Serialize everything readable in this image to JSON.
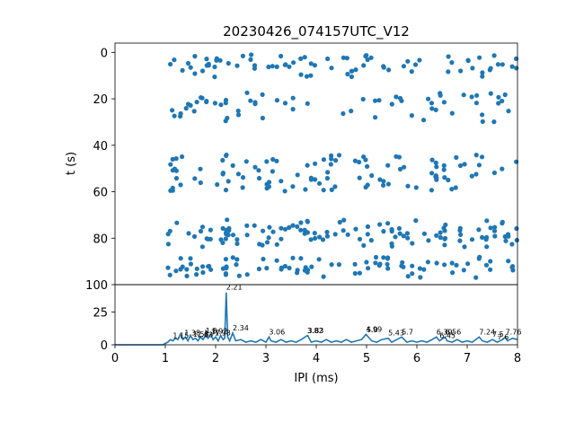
{
  "title": "20230426_074157UTC_V12",
  "colors": {
    "series": "#1f77b4",
    "axis": "#000000",
    "background": "#ffffff"
  },
  "chart_data": [
    {
      "type": "scatter",
      "panel": "raster",
      "title": "20230426_074157UTC_V12",
      "xlabel": "",
      "ylabel": "t (s)",
      "xlim": [
        0,
        8
      ],
      "ylim": [
        100,
        -4
      ],
      "y_inverted": true,
      "yticks": [
        "0",
        "20",
        "40",
        "60",
        "80",
        "100"
      ],
      "grid": false,
      "spike_ipi_ms": [
        1.06,
        1.1,
        1.14,
        1.18,
        1.22,
        1.3,
        1.34,
        1.42,
        1.46,
        1.5,
        1.58,
        1.62,
        1.7,
        1.74,
        1.82,
        1.86,
        1.9,
        1.98,
        2.02,
        2.1,
        2.14,
        2.21,
        2.21,
        2.21,
        2.22,
        2.26,
        2.34,
        2.42,
        2.46,
        2.54,
        2.62,
        2.7,
        2.78,
        2.86,
        2.94,
        3.02,
        3.06,
        3.14,
        3.22,
        3.3,
        3.38,
        3.46,
        3.54,
        3.62,
        3.7,
        3.78,
        3.82,
        3.83,
        3.9,
        3.98,
        4.06,
        4.14,
        4.22,
        4.3,
        4.38,
        4.46,
        4.54,
        4.62,
        4.7,
        4.78,
        4.86,
        4.94,
        4.99,
        5.02,
        5.1,
        5.18,
        5.26,
        5.34,
        5.42,
        5.43,
        5.5,
        5.58,
        5.66,
        5.7,
        5.74,
        5.82,
        5.9,
        5.98,
        6.06,
        6.14,
        6.22,
        6.3,
        6.38,
        6.39,
        6.46,
        6.54,
        6.56,
        6.62,
        6.7,
        6.78,
        6.86,
        6.94,
        7.02,
        7.1,
        7.18,
        7.24,
        7.3,
        7.38,
        7.46,
        7.54,
        7.62,
        7.7,
        7.76,
        7.82,
        7.9,
        7.98
      ],
      "burst_times_s": [
        4,
        8,
        20,
        27,
        47,
        52,
        57,
        75,
        78,
        81,
        91,
        94
      ]
    },
    {
      "type": "line",
      "panel": "histogram",
      "xlabel": "IPI (ms)",
      "ylabel": "",
      "xlim": [
        0,
        8
      ],
      "ylim": [
        0,
        46
      ],
      "xticks": [
        "0",
        "1",
        "2",
        "3",
        "4",
        "5",
        "6",
        "7",
        "8"
      ],
      "yticks": [
        "0",
        "25"
      ],
      "grid": false,
      "x": [
        0,
        0.5,
        0.95,
        1.0,
        1.05,
        1.1,
        1.15,
        1.2,
        1.25,
        1.3,
        1.35,
        1.4,
        1.45,
        1.5,
        1.55,
        1.6,
        1.65,
        1.7,
        1.75,
        1.8,
        1.85,
        1.9,
        1.95,
        2.0,
        2.05,
        2.1,
        2.15,
        2.18,
        2.21,
        2.24,
        2.28,
        2.34,
        2.4,
        2.5,
        2.6,
        2.7,
        2.8,
        2.9,
        3.0,
        3.06,
        3.1,
        3.2,
        3.3,
        3.4,
        3.5,
        3.6,
        3.7,
        3.82,
        3.83,
        3.9,
        4.0,
        4.1,
        4.2,
        4.3,
        4.4,
        4.5,
        4.6,
        4.7,
        4.8,
        4.9,
        4.99,
        5.1,
        5.2,
        5.3,
        5.43,
        5.5,
        5.6,
        5.7,
        5.8,
        5.9,
        6.0,
        6.1,
        6.2,
        6.3,
        6.39,
        6.45,
        6.56,
        6.6,
        6.7,
        6.8,
        6.9,
        7.0,
        7.1,
        7.24,
        7.3,
        7.4,
        7.5,
        7.6,
        7.7,
        7.76,
        7.8,
        7.9,
        8.0
      ],
      "y": [
        0,
        0,
        0,
        1,
        2,
        4,
        3,
        5,
        4,
        8,
        4,
        6,
        3,
        7,
        4,
        5,
        3,
        6,
        4,
        7,
        5,
        8,
        4,
        6,
        3,
        7,
        4,
        5,
        40,
        6,
        3,
        9,
        3,
        4,
        2,
        3,
        2,
        4,
        2,
        6,
        3,
        2,
        4,
        2,
        3,
        2,
        4,
        7,
        7,
        2,
        3,
        2,
        4,
        2,
        3,
        2,
        4,
        2,
        3,
        4,
        8,
        3,
        2,
        4,
        5,
        2,
        4,
        6,
        2,
        3,
        2,
        3,
        2,
        4,
        6,
        3,
        6,
        3,
        2,
        4,
        2,
        3,
        2,
        6,
        3,
        2,
        4,
        2,
        4,
        6,
        3,
        5,
        4
      ],
      "peaks": [
        {
          "x": 1.15,
          "label": "1.15"
        },
        {
          "x": 1.38,
          "label": "1.38"
        },
        {
          "x": 1.55,
          "label": "1.55"
        },
        {
          "x": 1.63,
          "label": "1.63"
        },
        {
          "x": 1.77,
          "label": "1.77"
        },
        {
          "x": 1.8,
          "label": "1.8"
        },
        {
          "x": 1.92,
          "label": "1.92"
        },
        {
          "x": 1.98,
          "label": "1.98"
        },
        {
          "x": 2.21,
          "label": "2.21"
        },
        {
          "x": 2.34,
          "label": "2.34"
        },
        {
          "x": 3.06,
          "label": "3.06"
        },
        {
          "x": 3.82,
          "label": "3.82"
        },
        {
          "x": 3.83,
          "label": "3.83"
        },
        {
          "x": 4.99,
          "label": "4.99"
        },
        {
          "x": 5.0,
          "label": "5.0"
        },
        {
          "x": 5.43,
          "label": "5.43"
        },
        {
          "x": 5.7,
          "label": "5.7"
        },
        {
          "x": 6.39,
          "label": "6.39"
        },
        {
          "x": 6.45,
          "label": "6.45"
        },
        {
          "x": 6.56,
          "label": "6.56"
        },
        {
          "x": 7.24,
          "label": "7.24"
        },
        {
          "x": 7.5,
          "label": "7.5"
        },
        {
          "x": 7.6,
          "label": "7.6"
        },
        {
          "x": 7.76,
          "label": "7.76"
        }
      ]
    }
  ]
}
